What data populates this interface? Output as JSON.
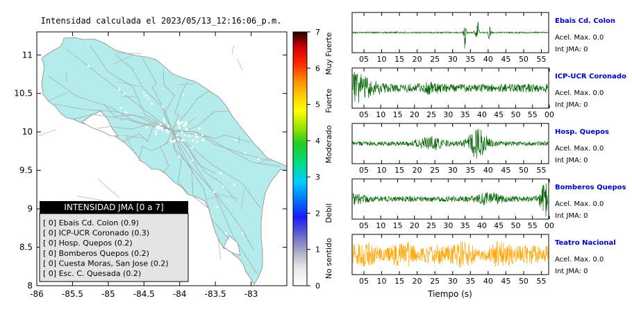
{
  "map": {
    "title": "Intensidad calculada el 2023/05/13_12:16:06_p.m.",
    "x_ticks": [
      "-86",
      "-85.5",
      "-85",
      "-84.5",
      "-84",
      "-83.5",
      "-83"
    ],
    "y_ticks": [
      "11",
      "10.5",
      "10",
      "9.5",
      "9",
      "8.5",
      "8"
    ],
    "xlim": [
      -86,
      -82.5
    ],
    "ylim": [
      8,
      11.3
    ],
    "land_color": "#b4ecec",
    "legend": {
      "title": "INTENSIDAD JMA [0 a 7]",
      "items": [
        "[ 0]  Ebais Cd. Colon (0.9)",
        "[ 0]  ICP-UCR Coronado (0.3)",
        "[ 0]  Hosp. Quepos (0.2)",
        "[ 0]  Bomberos Quepos (0.2)",
        "[ 0]  Cuesta Moras, San Jose (0.2)",
        "[ 0]  Esc. C. Quesada (0.2)"
      ]
    }
  },
  "colorbar": {
    "ticks": [
      "0",
      "1",
      "2",
      "3",
      "4",
      "5",
      "6",
      "7"
    ],
    "range": [
      0,
      7
    ],
    "labels": [
      "No sentido",
      "Debil",
      "Moderado",
      "Fuerte",
      "Muy Fuerte"
    ]
  },
  "chart_data": [
    {
      "type": "line",
      "station": "Ebais Cd. Colon",
      "accel": "Acel. Max. 0.0",
      "int": "Int JMA: 0",
      "x_ticks": [
        "05",
        "10",
        "15",
        "20",
        "25",
        "30",
        "35",
        "40",
        "45",
        "50",
        "55"
      ],
      "color": "#006400",
      "pattern": "spikes"
    },
    {
      "type": "line",
      "station": "ICP-UCR Coronado",
      "accel": "Acel. Max. 0.0",
      "int": "Int JMA: 0",
      "x_ticks": [
        "05",
        "10",
        "15",
        "20",
        "25",
        "30",
        "35",
        "40",
        "45",
        "50",
        "55",
        "00"
      ],
      "color": "#006400",
      "pattern": "early"
    },
    {
      "type": "line",
      "station": "Hosp. Quepos",
      "accel": "Acel. Max. 0.0",
      "int": "Int JMA: 0",
      "x_ticks": [
        "05",
        "10",
        "15",
        "20",
        "25",
        "30",
        "35",
        "40",
        "45",
        "50",
        "55"
      ],
      "color": "#006400",
      "pattern": "middle"
    },
    {
      "type": "line",
      "station": "Bomberos Quepos",
      "accel": "Acel. Max. 0.0",
      "int": "Int JMA: 0",
      "x_ticks": [
        "05",
        "10",
        "15",
        "20",
        "25",
        "30",
        "35",
        "40",
        "45",
        "50",
        "55",
        "00"
      ],
      "color": "#006400",
      "pattern": "late"
    },
    {
      "type": "line",
      "station": "Teatro Nacional",
      "accel": "Acel. Max. 0.0",
      "int": "Int JMA: 0",
      "x_ticks": [
        "05",
        "10",
        "15",
        "20",
        "25",
        "30",
        "35",
        "40",
        "45",
        "50",
        "55"
      ],
      "color": "#ffa500",
      "pattern": "uniform"
    }
  ],
  "xlabel": "Tiempo (s)",
  "station_name_color": "#0000cc"
}
